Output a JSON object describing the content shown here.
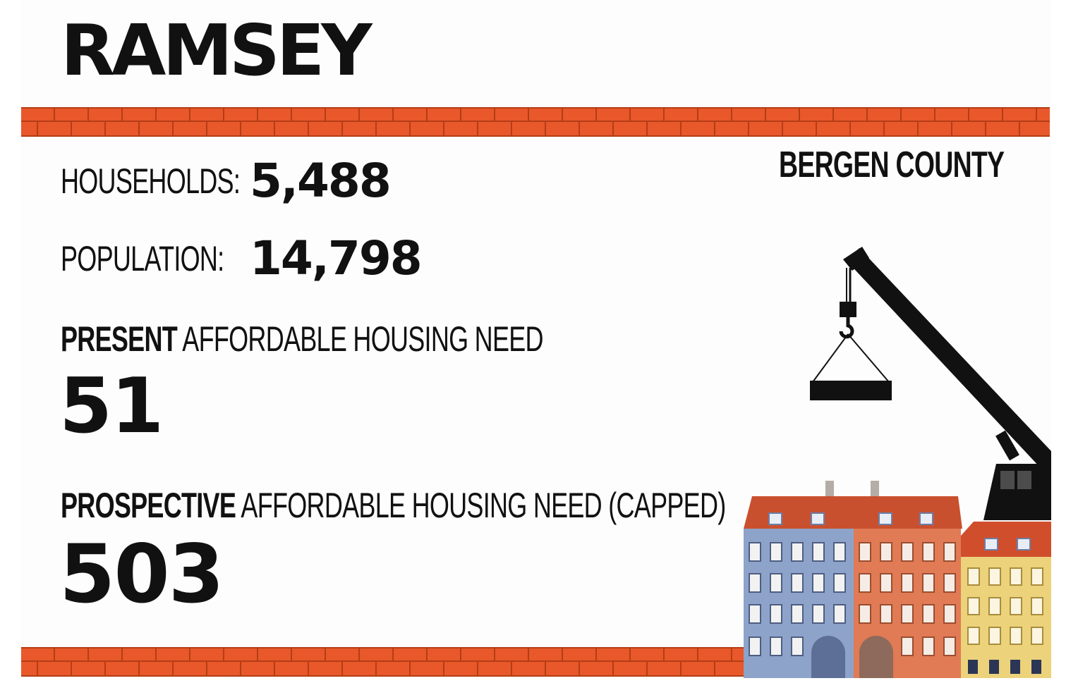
{
  "title": "RAMSEY",
  "county": "BERGEN COUNTY",
  "stats": {
    "households_label": "HOUSEHOLDS:",
    "households_value": "5,488",
    "population_label": "POPULATION:",
    "population_value": "14,798"
  },
  "present_need": {
    "label_bold": "PRESENT",
    "label_rest": " AFFORDABLE HOUSING NEED",
    "value": "51"
  },
  "prospective_need": {
    "label_bold": "PROSPECTIVE",
    "label_rest": " AFFORDABLE HOUSING NEED (CAPPED)",
    "value": "503"
  },
  "colors": {
    "brick": "#e8582b",
    "mortar": "#b53d15",
    "roof": "#c9502e",
    "building_blue": "#8ea3c9",
    "building_orange": "#e07b55",
    "building_yellow": "#ecd27b",
    "crane": "#111111"
  },
  "icons": [
    "brick-wall-icon",
    "crane-icon",
    "buildings-icon"
  ]
}
